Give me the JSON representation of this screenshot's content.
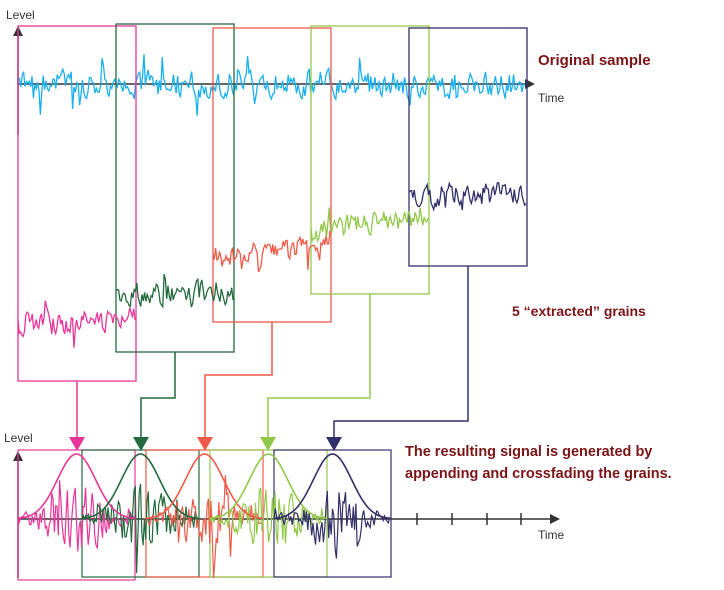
{
  "labels": {
    "level_top": "Level",
    "time_top": "Time",
    "level_bottom": "Level",
    "time_bottom": "Time",
    "original_sample": "Original sample",
    "extracted_grains": "5 “extracted” grains",
    "result_line1": "The resulting signal is generated by",
    "result_line2": "appending and crossfading the grains."
  },
  "colors": {
    "original": "#1ab0ee",
    "label_text": "#7a1416",
    "grains": [
      "#e8359a",
      "#236a3c",
      "#ef5a48",
      "#92c84a",
      "#32306a"
    ]
  },
  "grain_count": 5
}
